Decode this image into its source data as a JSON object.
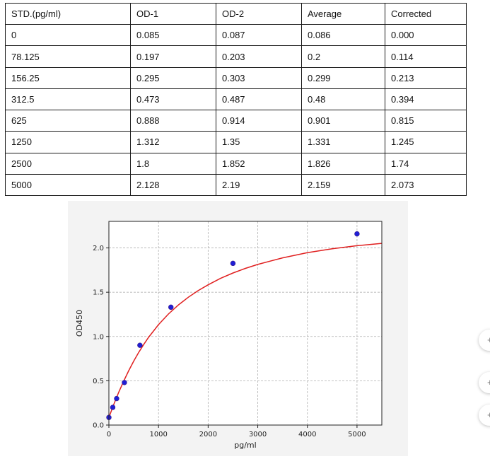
{
  "table": {
    "headers": [
      "STD.(pg/ml)",
      "OD-1",
      "OD-2",
      "Average",
      "Corrected"
    ],
    "rows": [
      [
        "0",
        "0.085",
        "0.087",
        "0.086",
        "0.000"
      ],
      [
        "78.125",
        "0.197",
        "0.203",
        "0.2",
        "0.114"
      ],
      [
        "156.25",
        "0.295",
        "0.303",
        "0.299",
        "0.213"
      ],
      [
        "312.5",
        "0.473",
        "0.487",
        "0.48",
        "0.394"
      ],
      [
        "625",
        "0.888",
        "0.914",
        "0.901",
        "0.815"
      ],
      [
        "1250",
        "1.312",
        "1.35",
        "1.331",
        "1.245"
      ],
      [
        "2500",
        "1.8",
        "1.852",
        "1.826",
        "1.74"
      ],
      [
        "5000",
        "2.128",
        "2.19",
        "2.159",
        "2.073"
      ]
    ]
  },
  "chart_data": {
    "type": "scatter",
    "title": "",
    "xlabel": "pg/ml",
    "ylabel": "OD450",
    "xlim": [
      0,
      5500
    ],
    "ylim": [
      0,
      2.3
    ],
    "xticks": [
      0,
      1000,
      2000,
      3000,
      4000,
      5000
    ],
    "yticks": [
      0.0,
      0.5,
      1.0,
      1.5,
      2.0
    ],
    "xtick_labels": [
      "0",
      "1000",
      "2000",
      "3000",
      "4000",
      "5000"
    ],
    "ytick_labels": [
      "0.0",
      "0.5",
      "1.0",
      "1.5",
      "2.0"
    ],
    "grid": true,
    "points": {
      "x": [
        0,
        78.125,
        156.25,
        312.5,
        625,
        1250,
        2500,
        5000
      ],
      "y": [
        0.086,
        0.2,
        0.299,
        0.48,
        0.901,
        1.331,
        1.826,
        2.159
      ],
      "color": "#1f1fd6"
    },
    "fit_curve": {
      "x": [
        0,
        100,
        200,
        300,
        400,
        500,
        600,
        700,
        800,
        1000,
        1200,
        1400,
        1600,
        1800,
        2000,
        2250,
        2500,
        2750,
        3000,
        3500,
        4000,
        4500,
        5000,
        5500
      ],
      "y": [
        0.086,
        0.235,
        0.372,
        0.498,
        0.615,
        0.722,
        0.819,
        0.908,
        0.99,
        1.134,
        1.254,
        1.356,
        1.443,
        1.518,
        1.584,
        1.656,
        1.717,
        1.769,
        1.814,
        1.888,
        1.946,
        1.99,
        2.025,
        2.052
      ],
      "color": "#e02020"
    }
  },
  "side_buttons": [
    "+",
    "+",
    "+"
  ]
}
